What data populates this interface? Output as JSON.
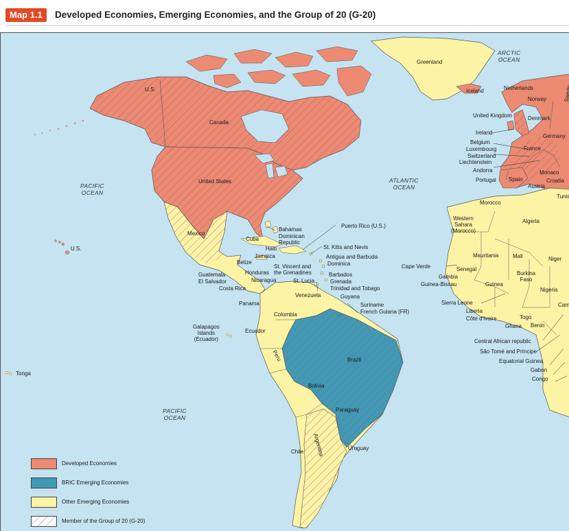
{
  "map": {
    "badge": "Map 1.1",
    "title": "Developed Economies, Emerging Economies, and the Group of 20 (G-20)"
  },
  "colors": {
    "ocean": "#c5e3f1",
    "developed": "#ec8a72",
    "bric": "#3e9ab5",
    "other": "#fdf3a5",
    "g20_hatch": "#a8557a",
    "badge": "#e24a24"
  },
  "oceans": {
    "arctic": "ARCTIC\nOCEAN",
    "atlantic": "ATLANTIC\nOCEAN",
    "pacific_north": "PACIFIC\nOCEAN",
    "pacific_south": "PACIFIC\nOCEAN"
  },
  "labels": {
    "greenland": "Greenland",
    "iceland": "Iceland",
    "us_alaska": "U.S.",
    "canada": "Canada",
    "united_states": "United States",
    "us_hawaii": "U.S.",
    "mexico": "Mexico",
    "bahamas": "Bahamas",
    "cuba": "Cuba",
    "dominican_republic": "Dominican\nRepublic",
    "haiti": "Haiti",
    "jamaica": "Jamaica",
    "belize": "Belize",
    "puerto_rico": "Puerto Rico (U.S.)",
    "st_kitts": "St. Kitts and Nevis",
    "antigua": "Antigua and Barbuda",
    "dominica": "Dominica",
    "st_vincent": "St. Vincent and\nthe Grenadines",
    "barbados": "Barbados",
    "grenada": "Grenada",
    "st_lucia": "St. Lucia",
    "trinidad": "Trinidad and Tobago",
    "guyana": "Guyana",
    "suriname": "Suriname",
    "french_guiana": "French Guiana (FR)",
    "guatemala": "Guatemala",
    "honduras": "Honduras",
    "el_salvador": "El Salvador",
    "nicaragua": "Nicaragua",
    "costa_rica": "Costa Rica",
    "panama": "Panama",
    "venezuela": "Venezuela",
    "colombia": "Colombia",
    "ecuador": "Ecuador",
    "galapagos": "Galapagos\nIslands\n(Ecuador)",
    "peru": "Peru",
    "brazil": "Brazil",
    "bolivia": "Bolivia",
    "paraguay": "Paraguay",
    "chile": "Chile",
    "argentina": "Argentina",
    "uruguay": "Uruguay",
    "tonga": "Tonga",
    "netherlands": "Netherlands",
    "norway": "Norway",
    "united_kingdom": "United Kingdom",
    "denmark": "Denmark",
    "ireland": "Ireland",
    "germany": "Germany",
    "belgium": "Belgium",
    "luxembourg": "Luxembourg",
    "france": "France",
    "switzerland": "Switzerland",
    "liechtenstein": "Liechtenstein",
    "andorra": "Andorra",
    "monaco": "Monaco",
    "portugal": "Portugal",
    "spain": "Spain",
    "austria": "Austria",
    "croatia": "Croatia",
    "morocco": "Morocco",
    "tunisia": "Tunisia",
    "western_sahara": "Western\nSahara\n(Morocco)",
    "algeria": "Algeria",
    "mauritania": "Mauritania",
    "mali": "Mali",
    "niger": "Niger",
    "cape_verde": "Cape Verde",
    "senegal": "Senegal",
    "gambia": "Gambia",
    "guinea_bissau": "Guinea-Bissau",
    "guinea": "Guinea",
    "burkina_faso": "Burkina\nFaso",
    "nigeria": "Nigeria",
    "sierra_leone": "Sierra Leone",
    "liberia": "Liberia",
    "cote_divoire": "Côte d'Ivoire",
    "ghana": "Ghana",
    "togo": "Togo",
    "benin": "Benin",
    "cameroon": "Cam",
    "car": "Central African republic",
    "sao_tome": "São Tomé and Príncipe",
    "eq_guinea": "Equatorial Guinea",
    "gabon": "Gabon",
    "congo": "Congo",
    "sweden": "Swede"
  },
  "legend": [
    {
      "key": "developed",
      "label": "Developed Economies"
    },
    {
      "key": "bric",
      "label": "BRIC Emerging Economies"
    },
    {
      "key": "other",
      "label": "Other Emerging Economies"
    },
    {
      "key": "g20",
      "label": "Member of the Group of 20 (G-20)"
    }
  ]
}
